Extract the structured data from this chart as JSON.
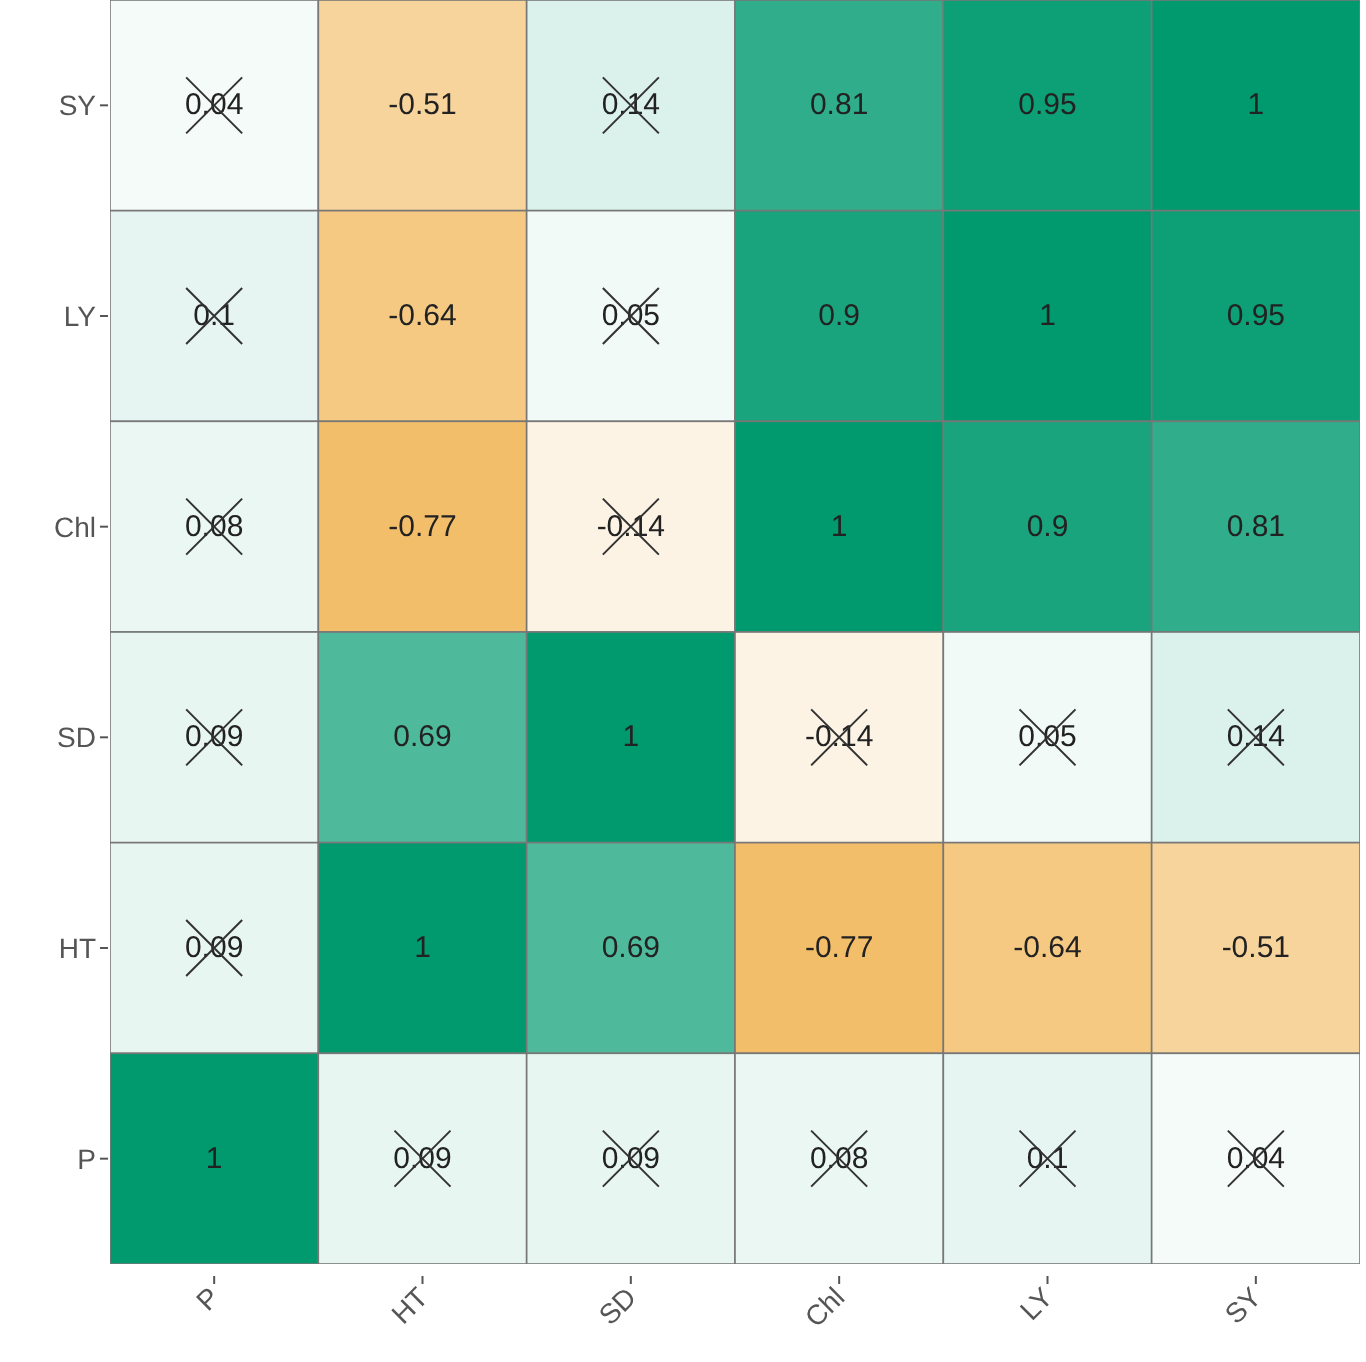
{
  "chart_data": {
    "type": "heatmap",
    "categories": [
      "P",
      "HT",
      "SD",
      "Chl",
      "LY",
      "SY"
    ],
    "y_categories": [
      "SY",
      "LY",
      "Chl",
      "SD",
      "HT",
      "P"
    ],
    "cells": [
      [
        0.04,
        -0.51,
        0.14,
        0.81,
        0.95,
        1
      ],
      [
        0.1,
        -0.64,
        0.05,
        0.9,
        1,
        0.95
      ],
      [
        0.08,
        -0.77,
        -0.14,
        1,
        0.9,
        0.81
      ],
      [
        0.09,
        0.69,
        1,
        -0.14,
        0.05,
        0.14
      ],
      [
        0.09,
        1,
        0.69,
        -0.77,
        -0.64,
        -0.51
      ],
      [
        1,
        0.09,
        0.09,
        0.08,
        0.1,
        0.04
      ]
    ],
    "data_labels": true
  }
}
